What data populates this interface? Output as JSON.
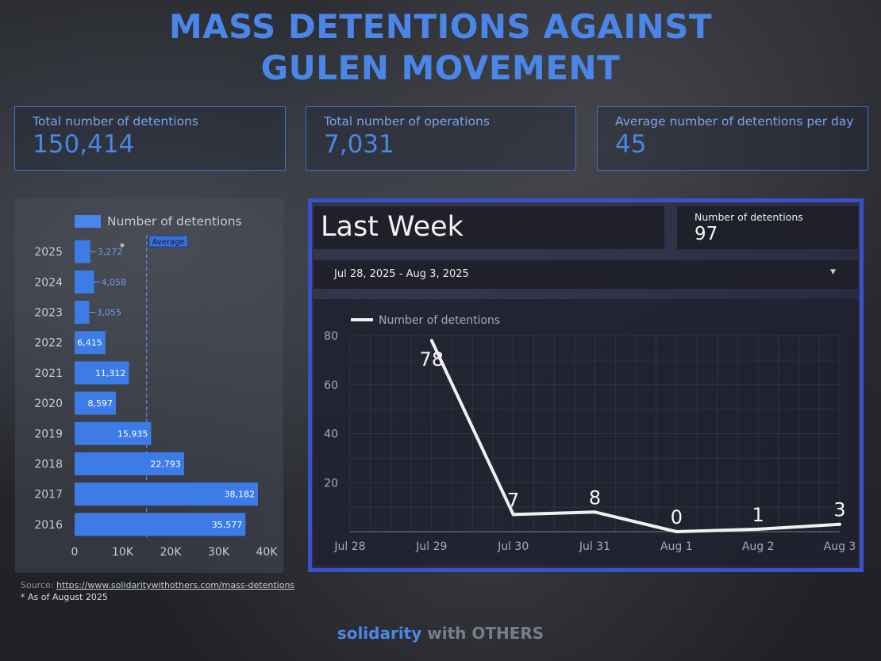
{
  "title": {
    "line1": "MASS DETENTIONS AGAINST",
    "line2": "GULEN MOVEMENT"
  },
  "kpis": [
    {
      "label": "Total number of detentions",
      "value": "150,414"
    },
    {
      "label": "Total number of operations",
      "value": "7,031"
    },
    {
      "label": "Average number of detentions per day",
      "value": "45"
    }
  ],
  "bar_panel": {
    "legend": "Number of detentions",
    "average_label": "Average",
    "asterisk": "*"
  },
  "last_week": {
    "title": "Last Week",
    "count_label": "Number of detentions",
    "count_value": "97",
    "date_range": "Jul 28, 2025 - Aug 3, 2025",
    "dropdown_icon": "caret-down-icon",
    "line_legend": "Number of detentions"
  },
  "colors": {
    "accent": "#4a86e8",
    "panel_border": "#3c50c8",
    "line": "#f0f0f0"
  },
  "chart_data": [
    {
      "type": "bar",
      "orientation": "horizontal",
      "categories": [
        "2025",
        "2024",
        "2023",
        "2022",
        "2021",
        "2020",
        "2019",
        "2018",
        "2017",
        "2016"
      ],
      "values": [
        3272,
        4058,
        3055,
        6415,
        11312,
        8597,
        15935,
        22793,
        38182,
        35577
      ],
      "labels": [
        "3,272",
        "4,058",
        "3,055",
        "6,415",
        "11,312",
        "8,597",
        "15,935",
        "22,793",
        "38,182",
        "35,577"
      ],
      "series_name": "Number of detentions",
      "xlim": [
        0,
        40000
      ],
      "xticks": [
        "0",
        "10K",
        "20K",
        "30K",
        "40K"
      ],
      "average_value": 15000,
      "legend": "top"
    },
    {
      "type": "line",
      "categories": [
        "Jul 28",
        "Jul 29",
        "Jul 30",
        "Jul 31",
        "Aug 1",
        "Aug 2",
        "Aug 3"
      ],
      "values": [
        null,
        78,
        7,
        8,
        0,
        1,
        3
      ],
      "series_name": "Number of detentions",
      "ylim": [
        0,
        80
      ],
      "yticks": [
        20,
        40,
        60,
        80
      ],
      "grid": true,
      "legend": "top-left"
    }
  ],
  "footer": {
    "source_prefix": "Source: ",
    "source_url": "https://www.solidaritywithothers.com/mass-detentions",
    "note": "* As of August 2025",
    "brand_a": "solidarity",
    "brand_b": " with OTHERS"
  }
}
